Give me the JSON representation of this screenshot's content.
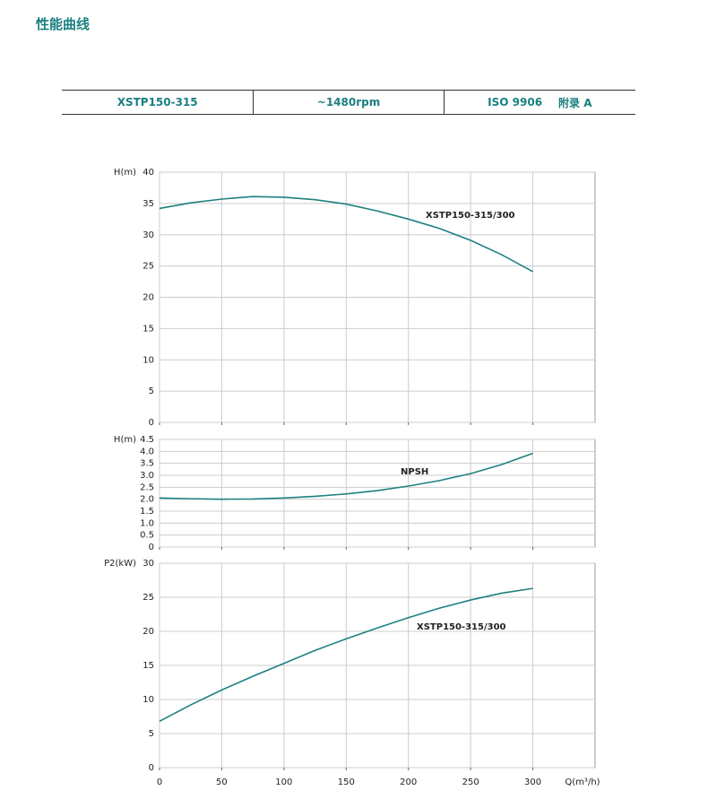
{
  "header": {
    "title": "性能曲线"
  },
  "table": {
    "cells": [
      "XSTP150-315",
      "~1480rpm",
      [
        "ISO 9906",
        "附录 A"
      ]
    ]
  },
  "chart_data": [
    {
      "type": "line",
      "y_label": "H(m)",
      "xlim": [
        0,
        350
      ],
      "ylim": [
        0,
        40
      ],
      "yticks": [
        0,
        5,
        10,
        15,
        20,
        25,
        30,
        35,
        40
      ],
      "grid": true,
      "x": [
        0,
        25,
        50,
        75,
        100,
        125,
        150,
        175,
        200,
        225,
        250,
        275,
        300
      ],
      "series": [
        {
          "name": "XSTP150-315/300",
          "color": "#1f8080",
          "values": [
            34.2,
            35.1,
            35.7,
            36.1,
            36.0,
            35.6,
            34.9,
            33.8,
            32.5,
            31.0,
            29.1,
            26.8,
            24.1
          ]
        }
      ]
    },
    {
      "type": "line",
      "y_label": "H(m)",
      "xlim": [
        0,
        350
      ],
      "ylim": [
        0,
        4.5
      ],
      "yticks": [
        0,
        0.5,
        {
          "value": 1,
          "label": "1.0"
        },
        1.5,
        {
          "value": 2,
          "label": "2.0"
        },
        2.5,
        {
          "value": 3,
          "label": "3.0"
        },
        3.5,
        {
          "value": 4,
          "label": "4.0"
        },
        4.5
      ],
      "grid": true,
      "x": [
        0,
        25,
        50,
        75,
        100,
        125,
        150,
        175,
        200,
        225,
        250,
        275,
        300
      ],
      "series": [
        {
          "name": "NPSH",
          "color": "#1f8080",
          "values": [
            2.05,
            2.02,
            2.0,
            2.01,
            2.05,
            2.12,
            2.22,
            2.36,
            2.55,
            2.78,
            3.07,
            3.45,
            3.92
          ]
        }
      ]
    },
    {
      "type": "line",
      "y_label": "P2(kW)",
      "x_label": "Q(m³/h)",
      "xlim": [
        0,
        350
      ],
      "ylim": [
        0,
        30
      ],
      "yticks": [
        0,
        5,
        10,
        15,
        20,
        25,
        30
      ],
      "xticks": [
        0,
        50,
        100,
        150,
        200,
        250,
        300
      ],
      "grid": true,
      "x": [
        0,
        25,
        50,
        75,
        100,
        125,
        150,
        175,
        200,
        225,
        250,
        275,
        300
      ],
      "series": [
        {
          "name": "XSTP150-315/300",
          "color": "#1f8080",
          "values": [
            6.8,
            9.2,
            11.4,
            13.4,
            15.3,
            17.2,
            18.9,
            20.5,
            22.0,
            23.4,
            24.6,
            25.6,
            26.3
          ]
        }
      ]
    }
  ]
}
